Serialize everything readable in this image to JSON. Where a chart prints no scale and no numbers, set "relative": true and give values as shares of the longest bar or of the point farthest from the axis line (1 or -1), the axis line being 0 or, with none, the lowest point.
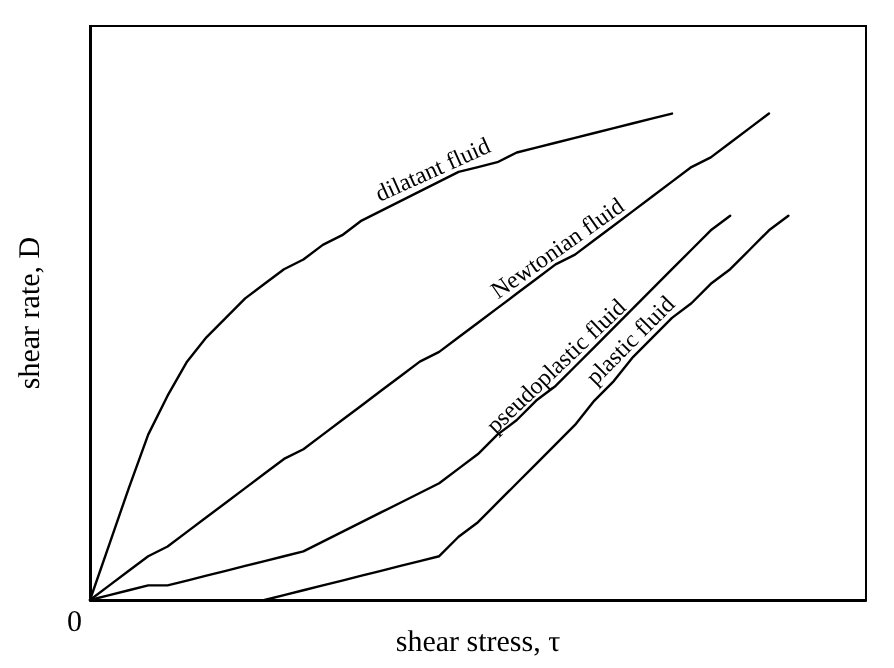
{
  "chart_data": {
    "type": "line",
    "relative": true,
    "xlabel": "shear stress, τ",
    "ylabel": "shear rate, D",
    "annotations": [
      "0"
    ],
    "legend": false,
    "marker": "none",
    "line_style": "solid",
    "categories": [
      null,
      null,
      null,
      null,
      null,
      null,
      null,
      null,
      null,
      null,
      null,
      null,
      null,
      null,
      null,
      null,
      null,
      null,
      null,
      null,
      null,
      null,
      null,
      null,
      null,
      null,
      null,
      null,
      null,
      null,
      null,
      null,
      null,
      null,
      null,
      null,
      null,
      null,
      null,
      null,
      null
    ],
    "series": [
      {
        "name": "dilatant fluid",
        "color": "#000000",
        "values": [
          0,
          0.115,
          0.23,
          0.34,
          0.42,
          0.49,
          0.54,
          0.58,
          0.62,
          0.65,
          0.68,
          0.7,
          0.73,
          0.75,
          0.78,
          0.8,
          0.82,
          0.84,
          0.86,
          0.88,
          0.89,
          0.9,
          0.92,
          0.93,
          0.94,
          0.95,
          0.96,
          0.97,
          0.98,
          0.99,
          1,
          null,
          null,
          null,
          null,
          null,
          null,
          null,
          null,
          null,
          null
        ]
      },
      {
        "name": "Newtonian fluid",
        "color": "#000000",
        "values": [
          0,
          0.03,
          0.06,
          0.09,
          0.11,
          0.14,
          0.17,
          0.2,
          0.23,
          0.26,
          0.29,
          0.31,
          0.34,
          0.37,
          0.4,
          0.43,
          0.46,
          0.49,
          0.51,
          0.54,
          0.57,
          0.6,
          0.63,
          0.66,
          0.69,
          0.71,
          0.74,
          0.77,
          0.8,
          0.83,
          0.86,
          0.89,
          0.91,
          0.94,
          0.97,
          1,
          null,
          null,
          null,
          null,
          null
        ]
      },
      {
        "name": "pseudoplastic fluid",
        "color": "#000000",
        "values": [
          0,
          0.01,
          0.02,
          0.03,
          0.03,
          0.04,
          0.05,
          0.06,
          0.07,
          0.08,
          0.09,
          0.1,
          0.12,
          0.14,
          0.16,
          0.18,
          0.2,
          0.22,
          0.24,
          0.27,
          0.3,
          0.34,
          0.37,
          0.41,
          0.44,
          0.48,
          0.52,
          0.56,
          0.6,
          0.64,
          0.68,
          0.72,
          0.76,
          0.79,
          null,
          null,
          null,
          null,
          null,
          null,
          null
        ]
      },
      {
        "name": "plastic fluid",
        "color": "#000000",
        "values": [
          null,
          null,
          null,
          null,
          null,
          null,
          null,
          null,
          null,
          0,
          0.01,
          0.02,
          0.03,
          0.04,
          0.05,
          0.06,
          0.07,
          0.08,
          0.09,
          0.13,
          0.16,
          0.2,
          0.24,
          0.28,
          0.32,
          0.36,
          0.41,
          0.45,
          0.5,
          0.54,
          0.58,
          0.61,
          0.65,
          0.68,
          0.72,
          0.76,
          0.79,
          null,
          null,
          null,
          null
        ]
      }
    ]
  }
}
